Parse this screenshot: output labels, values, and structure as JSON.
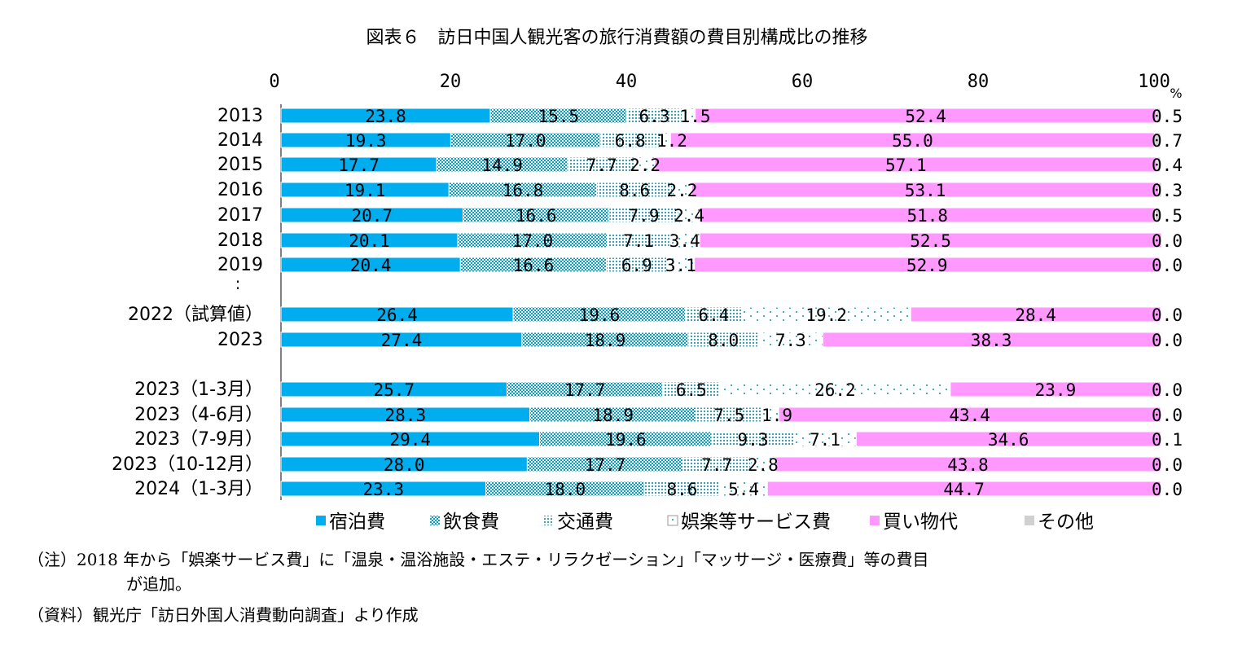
{
  "chart_data": {
    "type": "bar",
    "orientation": "horizontal",
    "stacked": true,
    "title": "図表６　訪日中国人観光客の旅行消費額の費目別構成比の推移",
    "x_ticks": [
      "0",
      "20",
      "40",
      "60",
      "80",
      "100"
    ],
    "x_unit": "%",
    "xlim": [
      0,
      100
    ],
    "ellipsis": ":",
    "categories": [
      "2013",
      "2014",
      "2015",
      "2016",
      "2017",
      "2018",
      "2019",
      "2022（試算値）",
      "2023",
      "2023（1-3月）",
      "2023（4-6月）",
      "2023（7-9月）",
      "2023（10-12月）",
      "2024（1-3月）"
    ],
    "series": [
      {
        "name": "宿泊費",
        "color": "#00aeef",
        "pattern": "solid",
        "values": [
          23.8,
          19.3,
          17.7,
          19.1,
          20.7,
          20.1,
          20.4,
          26.4,
          27.4,
          25.7,
          28.3,
          29.4,
          28.0,
          23.3
        ],
        "labels": [
          "23.8",
          "19.3",
          "17.7",
          "19.1",
          "20.7",
          "20.1",
          "20.4",
          "26.4",
          "27.4",
          "25.7",
          "28.3",
          "29.4",
          "28.0",
          "23.3"
        ]
      },
      {
        "name": "飲食費",
        "color": "#7fcfe0",
        "pattern": "dense-dots",
        "values": [
          15.5,
          17.0,
          14.9,
          16.8,
          16.6,
          17.0,
          16.6,
          19.6,
          18.9,
          17.7,
          18.9,
          19.6,
          17.7,
          18.0
        ],
        "labels": [
          "15.5",
          "17.0",
          "14.9",
          "16.8",
          "16.6",
          "17.0",
          "16.6",
          "19.6",
          "18.9",
          "17.7",
          "18.9",
          "19.6",
          "17.7",
          "18.0"
        ]
      },
      {
        "name": "交通費",
        "color": "#5fb8c8",
        "pattern": "grid-dots",
        "values": [
          6.3,
          6.8,
          7.7,
          8.6,
          7.9,
          7.1,
          6.9,
          6.4,
          8.0,
          6.5,
          7.5,
          9.3,
          7.7,
          8.6
        ],
        "labels": [
          "6.3",
          "6.8",
          "7.7",
          "8.6",
          "7.9",
          "7.1",
          "6.9",
          "6.4",
          "8.0",
          "6.5",
          "7.5",
          "9.3",
          "7.7",
          "8.6"
        ]
      },
      {
        "name": "娯楽等サービス費",
        "color": "#88c8d8",
        "pattern": "sparse-dots",
        "values": [
          1.5,
          1.2,
          2.2,
          2.2,
          2.4,
          3.4,
          3.1,
          19.2,
          7.3,
          26.2,
          1.9,
          7.1,
          2.8,
          5.4
        ],
        "labels": [
          "1.5",
          "1.2",
          "2.2",
          "2.2",
          "2.4",
          "3.4",
          "3.1",
          "19.2",
          "7.3",
          "26.2",
          "1.9",
          "7.1",
          "2.8",
          "5.4"
        ]
      },
      {
        "name": "買い物代",
        "color": "#ff99ff",
        "pattern": "solid",
        "values": [
          52.4,
          55.0,
          57.1,
          53.1,
          51.8,
          52.5,
          52.9,
          28.4,
          38.3,
          23.9,
          43.4,
          34.6,
          43.8,
          44.7
        ],
        "labels": [
          "52.4",
          "55.0",
          "57.1",
          "53.1",
          "51.8",
          "52.5",
          "52.9",
          "28.4",
          "38.3",
          "23.9",
          "43.4",
          "34.6",
          "43.8",
          "44.7"
        ]
      },
      {
        "name": "その他",
        "color": "#d0d0d0",
        "pattern": "solid",
        "values": [
          0.5,
          0.7,
          0.4,
          0.3,
          0.5,
          0.0,
          0.0,
          0.0,
          0.0,
          0.0,
          0.0,
          0.1,
          0.0,
          0.0
        ],
        "labels": [
          "0.5",
          "0.7",
          "0.4",
          "0.3",
          "0.5",
          "0.0",
          "0.0",
          "0.0",
          "0.0",
          "0.0",
          "0.0",
          "0.1",
          "0.0",
          "0.0"
        ]
      }
    ],
    "legend_position": "bottom",
    "grid": false
  },
  "notes": {
    "note_1": "（注）2018 年から「娯楽サービス費」に「温泉・温浴施設・エステ・リラクゼーション」「マッサージ・医療費」等の費目",
    "note_2": "が追加。",
    "note_3": "（資料）観光庁「訪日外国人消費動向調査」より作成"
  }
}
